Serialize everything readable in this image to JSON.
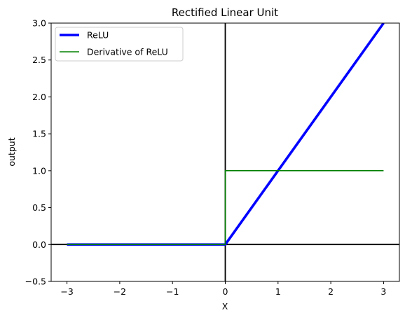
{
  "chart_data": {
    "type": "line",
    "title": "Rectified Linear Unit",
    "xlabel": "X",
    "ylabel": "output",
    "xlim": [
      -3.3,
      3.3
    ],
    "ylim": [
      -0.5,
      3.0
    ],
    "xticks": [
      -3,
      -2,
      -1,
      0,
      1,
      2,
      3
    ],
    "xtick_labels": [
      "−3",
      "−2",
      "−1",
      "0",
      "1",
      "2",
      "3"
    ],
    "yticks": [
      -0.5,
      0.0,
      0.5,
      1.0,
      1.5,
      2.0,
      2.5,
      3.0
    ],
    "ytick_labels": [
      "−0.5",
      "0.0",
      "0.5",
      "1.0",
      "1.5",
      "2.0",
      "2.5",
      "3.0"
    ],
    "grid": false,
    "legend_position": "top-left",
    "reference_lines": [
      {
        "orientation": "horizontal",
        "value": 0,
        "color": "#000000"
      },
      {
        "orientation": "vertical",
        "value": 0,
        "color": "#000000"
      }
    ],
    "series": [
      {
        "name": "ReLU",
        "color": "#0000ff",
        "x": [
          -3,
          0,
          3
        ],
        "y": [
          0,
          0,
          3
        ]
      },
      {
        "name": "Derivative of ReLU",
        "color": "#008000",
        "x": [
          -3,
          0,
          0,
          3
        ],
        "y": [
          0,
          0,
          1,
          1
        ]
      }
    ]
  }
}
